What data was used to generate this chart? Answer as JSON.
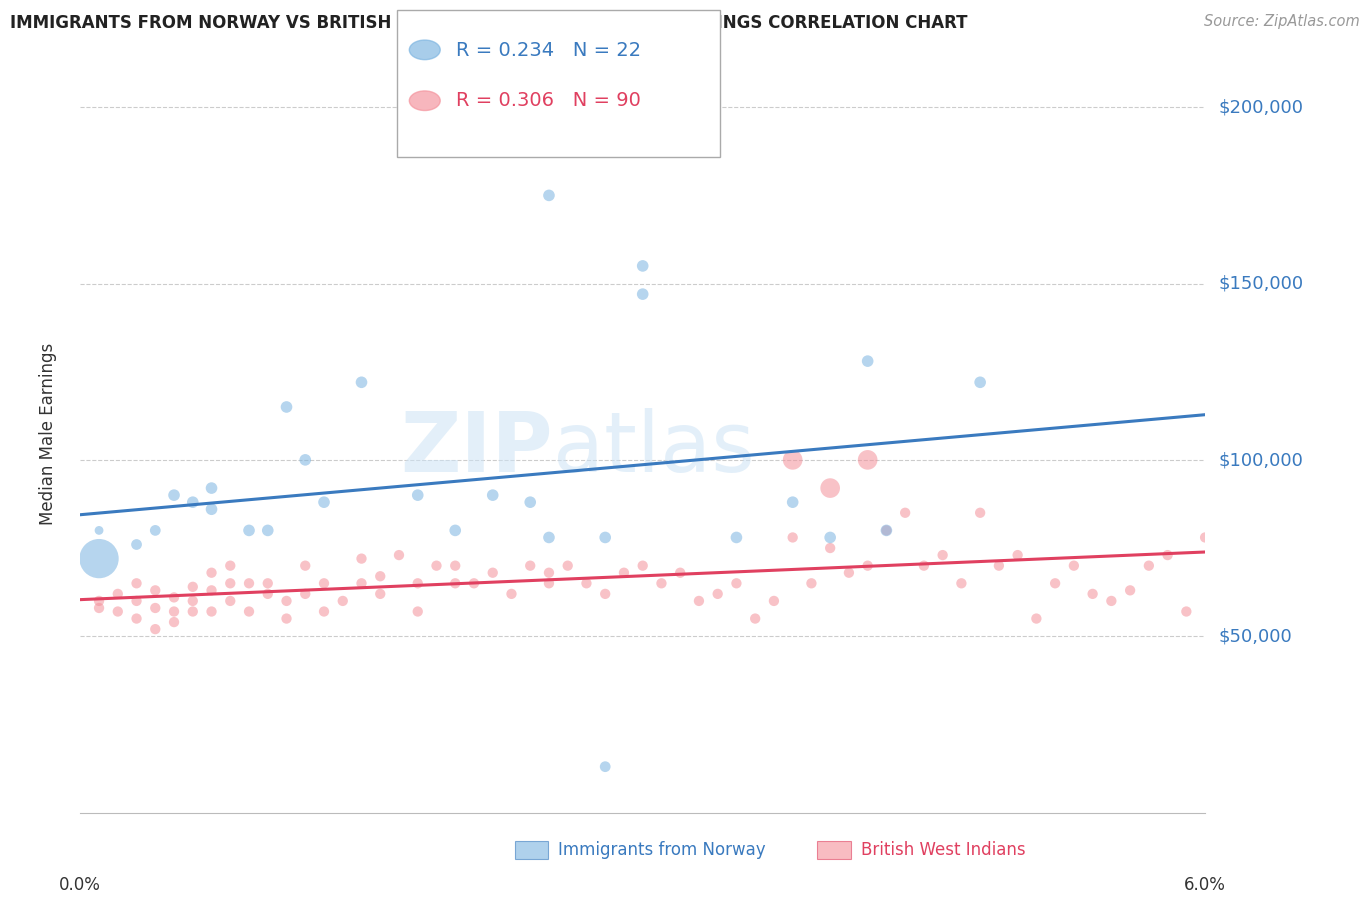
{
  "title": "IMMIGRANTS FROM NORWAY VS BRITISH WEST INDIAN MEDIAN MALE EARNINGS CORRELATION CHART",
  "source": "Source: ZipAtlas.com",
  "ylabel": "Median Male Earnings",
  "y_ticks": [
    50000,
    100000,
    150000,
    200000
  ],
  "y_tick_labels": [
    "$50,000",
    "$100,000",
    "$150,000",
    "$200,000"
  ],
  "x_range": [
    0.0,
    0.06
  ],
  "y_range": [
    0,
    215000
  ],
  "legend1_r": "0.234",
  "legend1_n": "22",
  "legend2_r": "0.306",
  "legend2_n": "90",
  "blue_color": "#7ab3e0",
  "pink_color": "#f4909a",
  "blue_line_color": "#3a7abf",
  "pink_line_color": "#e04060",
  "norway_x": [
    0.001,
    0.003,
    0.004,
    0.005,
    0.006,
    0.007,
    0.007,
    0.009,
    0.01,
    0.011,
    0.012,
    0.013,
    0.015,
    0.018,
    0.02,
    0.022,
    0.024,
    0.025,
    0.028,
    0.03,
    0.035,
    0.038,
    0.04,
    0.042,
    0.043,
    0.048,
    0.025,
    0.03
  ],
  "norway_y": [
    80000,
    76000,
    80000,
    90000,
    88000,
    86000,
    92000,
    80000,
    80000,
    115000,
    100000,
    88000,
    122000,
    90000,
    80000,
    90000,
    88000,
    78000,
    78000,
    155000,
    78000,
    88000,
    78000,
    128000,
    80000,
    122000,
    175000,
    147000
  ],
  "norway_sizes": [
    40,
    60,
    60,
    70,
    70,
    70,
    70,
    70,
    70,
    70,
    70,
    70,
    70,
    70,
    70,
    70,
    70,
    70,
    70,
    70,
    70,
    70,
    70,
    70,
    70,
    70,
    70,
    70
  ],
  "norway_big_x": [
    0.001
  ],
  "norway_big_y": [
    72000
  ],
  "norway_big_sizes": [
    800
  ],
  "norway_outlier_x": [
    0.028
  ],
  "norway_outlier_y": [
    13000
  ],
  "norway_outlier_sizes": [
    60
  ],
  "bwi_x": [
    0.001,
    0.001,
    0.002,
    0.002,
    0.003,
    0.003,
    0.003,
    0.004,
    0.004,
    0.004,
    0.005,
    0.005,
    0.005,
    0.006,
    0.006,
    0.006,
    0.007,
    0.007,
    0.007,
    0.008,
    0.008,
    0.008,
    0.009,
    0.009,
    0.01,
    0.01,
    0.011,
    0.011,
    0.012,
    0.012,
    0.013,
    0.013,
    0.014,
    0.015,
    0.015,
    0.016,
    0.016,
    0.017,
    0.018,
    0.018,
    0.019,
    0.02,
    0.02,
    0.021,
    0.022,
    0.023,
    0.024,
    0.025,
    0.025,
    0.026,
    0.027,
    0.028,
    0.029,
    0.03,
    0.031,
    0.032,
    0.033,
    0.034,
    0.035,
    0.036,
    0.037,
    0.038,
    0.039,
    0.04,
    0.041,
    0.042,
    0.043,
    0.044,
    0.045,
    0.046,
    0.047,
    0.048,
    0.049,
    0.05,
    0.051,
    0.052,
    0.053,
    0.054,
    0.055,
    0.056,
    0.057,
    0.058,
    0.059,
    0.06,
    0.038,
    0.04,
    0.042
  ],
  "bwi_y": [
    60000,
    58000,
    62000,
    57000,
    65000,
    60000,
    55000,
    63000,
    58000,
    52000,
    61000,
    57000,
    54000,
    64000,
    60000,
    57000,
    68000,
    63000,
    57000,
    70000,
    65000,
    60000,
    65000,
    57000,
    65000,
    62000,
    60000,
    55000,
    62000,
    70000,
    65000,
    57000,
    60000,
    65000,
    72000,
    67000,
    62000,
    73000,
    65000,
    57000,
    70000,
    65000,
    70000,
    65000,
    68000,
    62000,
    70000,
    65000,
    68000,
    70000,
    65000,
    62000,
    68000,
    70000,
    65000,
    68000,
    60000,
    62000,
    65000,
    55000,
    60000,
    78000,
    65000,
    75000,
    68000,
    70000,
    80000,
    85000,
    70000,
    73000,
    65000,
    85000,
    70000,
    73000,
    55000,
    65000,
    70000,
    62000,
    60000,
    63000,
    70000,
    73000,
    57000,
    78000,
    100000,
    92000,
    100000
  ],
  "bwi_sizes": [
    55,
    55,
    55,
    55,
    55,
    55,
    55,
    55,
    55,
    55,
    55,
    55,
    55,
    55,
    55,
    55,
    55,
    55,
    55,
    55,
    55,
    55,
    55,
    55,
    55,
    55,
    55,
    55,
    55,
    55,
    55,
    55,
    55,
    55,
    55,
    55,
    55,
    55,
    55,
    55,
    55,
    55,
    55,
    55,
    55,
    55,
    55,
    55,
    55,
    55,
    55,
    55,
    55,
    55,
    55,
    55,
    55,
    55,
    55,
    55,
    55,
    55,
    55,
    55,
    55,
    55,
    55,
    55,
    55,
    55,
    55,
    55,
    55,
    55,
    55,
    55,
    55,
    55,
    55,
    55,
    55,
    55,
    55,
    55,
    200,
    200,
    200
  ],
  "watermark_line1": "ZIP",
  "watermark_line2": "atlas",
  "background_color": "#ffffff",
  "grid_color": "#cccccc"
}
